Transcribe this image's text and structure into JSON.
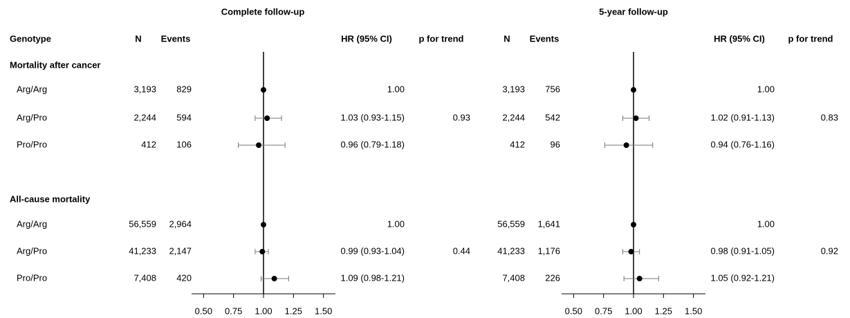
{
  "chart_data": {
    "type": "forest",
    "headers": {
      "genotype": "Genotype",
      "n": "N",
      "events": "Events",
      "hr": "HR (95% CI)",
      "p": "p for trend"
    },
    "groups": [
      {
        "title": "Mortality after cancer",
        "rows": [
          "Arg/Arg",
          "Arg/Pro",
          "Pro/Pro"
        ]
      },
      {
        "title": "All-cause mortality",
        "rows": [
          "Arg/Arg",
          "Arg/Pro",
          "Pro/Pro"
        ]
      }
    ],
    "panels": [
      {
        "title": "Complete follow-up",
        "xlim": [
          0.4,
          1.6
        ],
        "xticks": [
          {
            "value": 0.5,
            "label": "0.50"
          },
          {
            "value": 0.75,
            "label": "0.75"
          },
          {
            "value": 1,
            "label": "1.00"
          },
          {
            "value": 1.25,
            "label": "1.25"
          },
          {
            "value": 1.5,
            "label": "1.50"
          }
        ],
        "reference": 1,
        "groups": [
          {
            "rows": [
              {
                "n": "3,193",
                "events": "829",
                "hr": 1.0,
                "lo": null,
                "hi": null,
                "hr_label": "1.00",
                "p": null
              },
              {
                "n": "2,244",
                "events": "594",
                "hr": 1.03,
                "lo": 0.93,
                "hi": 1.15,
                "hr_label": "1.03 (0.93-1.15)",
                "p": "0.93"
              },
              {
                "n": "412",
                "events": "106",
                "hr": 0.96,
                "lo": 0.79,
                "hi": 1.18,
                "hr_label": "0.96 (0.79-1.18)",
                "p": null
              }
            ]
          },
          {
            "rows": [
              {
                "n": "56,559",
                "events": "2,964",
                "hr": 1.0,
                "lo": null,
                "hi": null,
                "hr_label": "1.00",
                "p": null
              },
              {
                "n": "41,233",
                "events": "2,147",
                "hr": 0.99,
                "lo": 0.93,
                "hi": 1.04,
                "hr_label": "0.99 (0.93-1.04)",
                "p": "0.44"
              },
              {
                "n": "7,408",
                "events": "420",
                "hr": 1.09,
                "lo": 0.98,
                "hi": 1.21,
                "hr_label": "1.09 (0.98-1.21)",
                "p": null
              }
            ]
          }
        ]
      },
      {
        "title": "5-year follow-up",
        "xlim": [
          0.4,
          1.6
        ],
        "xticks": [
          {
            "value": 0.5,
            "label": "0.50"
          },
          {
            "value": 0.75,
            "label": "0.75"
          },
          {
            "value": 1,
            "label": "1.00"
          },
          {
            "value": 1.25,
            "label": "1.25"
          },
          {
            "value": 1.5,
            "label": "1.50"
          }
        ],
        "reference": 1,
        "groups": [
          {
            "rows": [
              {
                "n": "3,193",
                "events": "756",
                "hr": 1.0,
                "lo": null,
                "hi": null,
                "hr_label": "1.00",
                "p": null
              },
              {
                "n": "2,244",
                "events": "542",
                "hr": 1.02,
                "lo": 0.91,
                "hi": 1.13,
                "hr_label": "1.02 (0.91-1.13)",
                "p": "0.83"
              },
              {
                "n": "412",
                "events": "96",
                "hr": 0.94,
                "lo": 0.76,
                "hi": 1.16,
                "hr_label": "0.94 (0.76-1.16)",
                "p": null
              }
            ]
          },
          {
            "rows": [
              {
                "n": "56,559",
                "events": "1,641",
                "hr": 1.0,
                "lo": null,
                "hi": null,
                "hr_label": "1.00",
                "p": null
              },
              {
                "n": "41,233",
                "events": "1,176",
                "hr": 0.98,
                "lo": 0.91,
                "hi": 1.05,
                "hr_label": "0.98 (0.91-1.05)",
                "p": "0.92"
              },
              {
                "n": "7,408",
                "events": "226",
                "hr": 1.05,
                "lo": 0.92,
                "hi": 1.21,
                "hr_label": "1.05 (0.92-1.21)",
                "p": null
              }
            ]
          }
        ]
      }
    ]
  }
}
